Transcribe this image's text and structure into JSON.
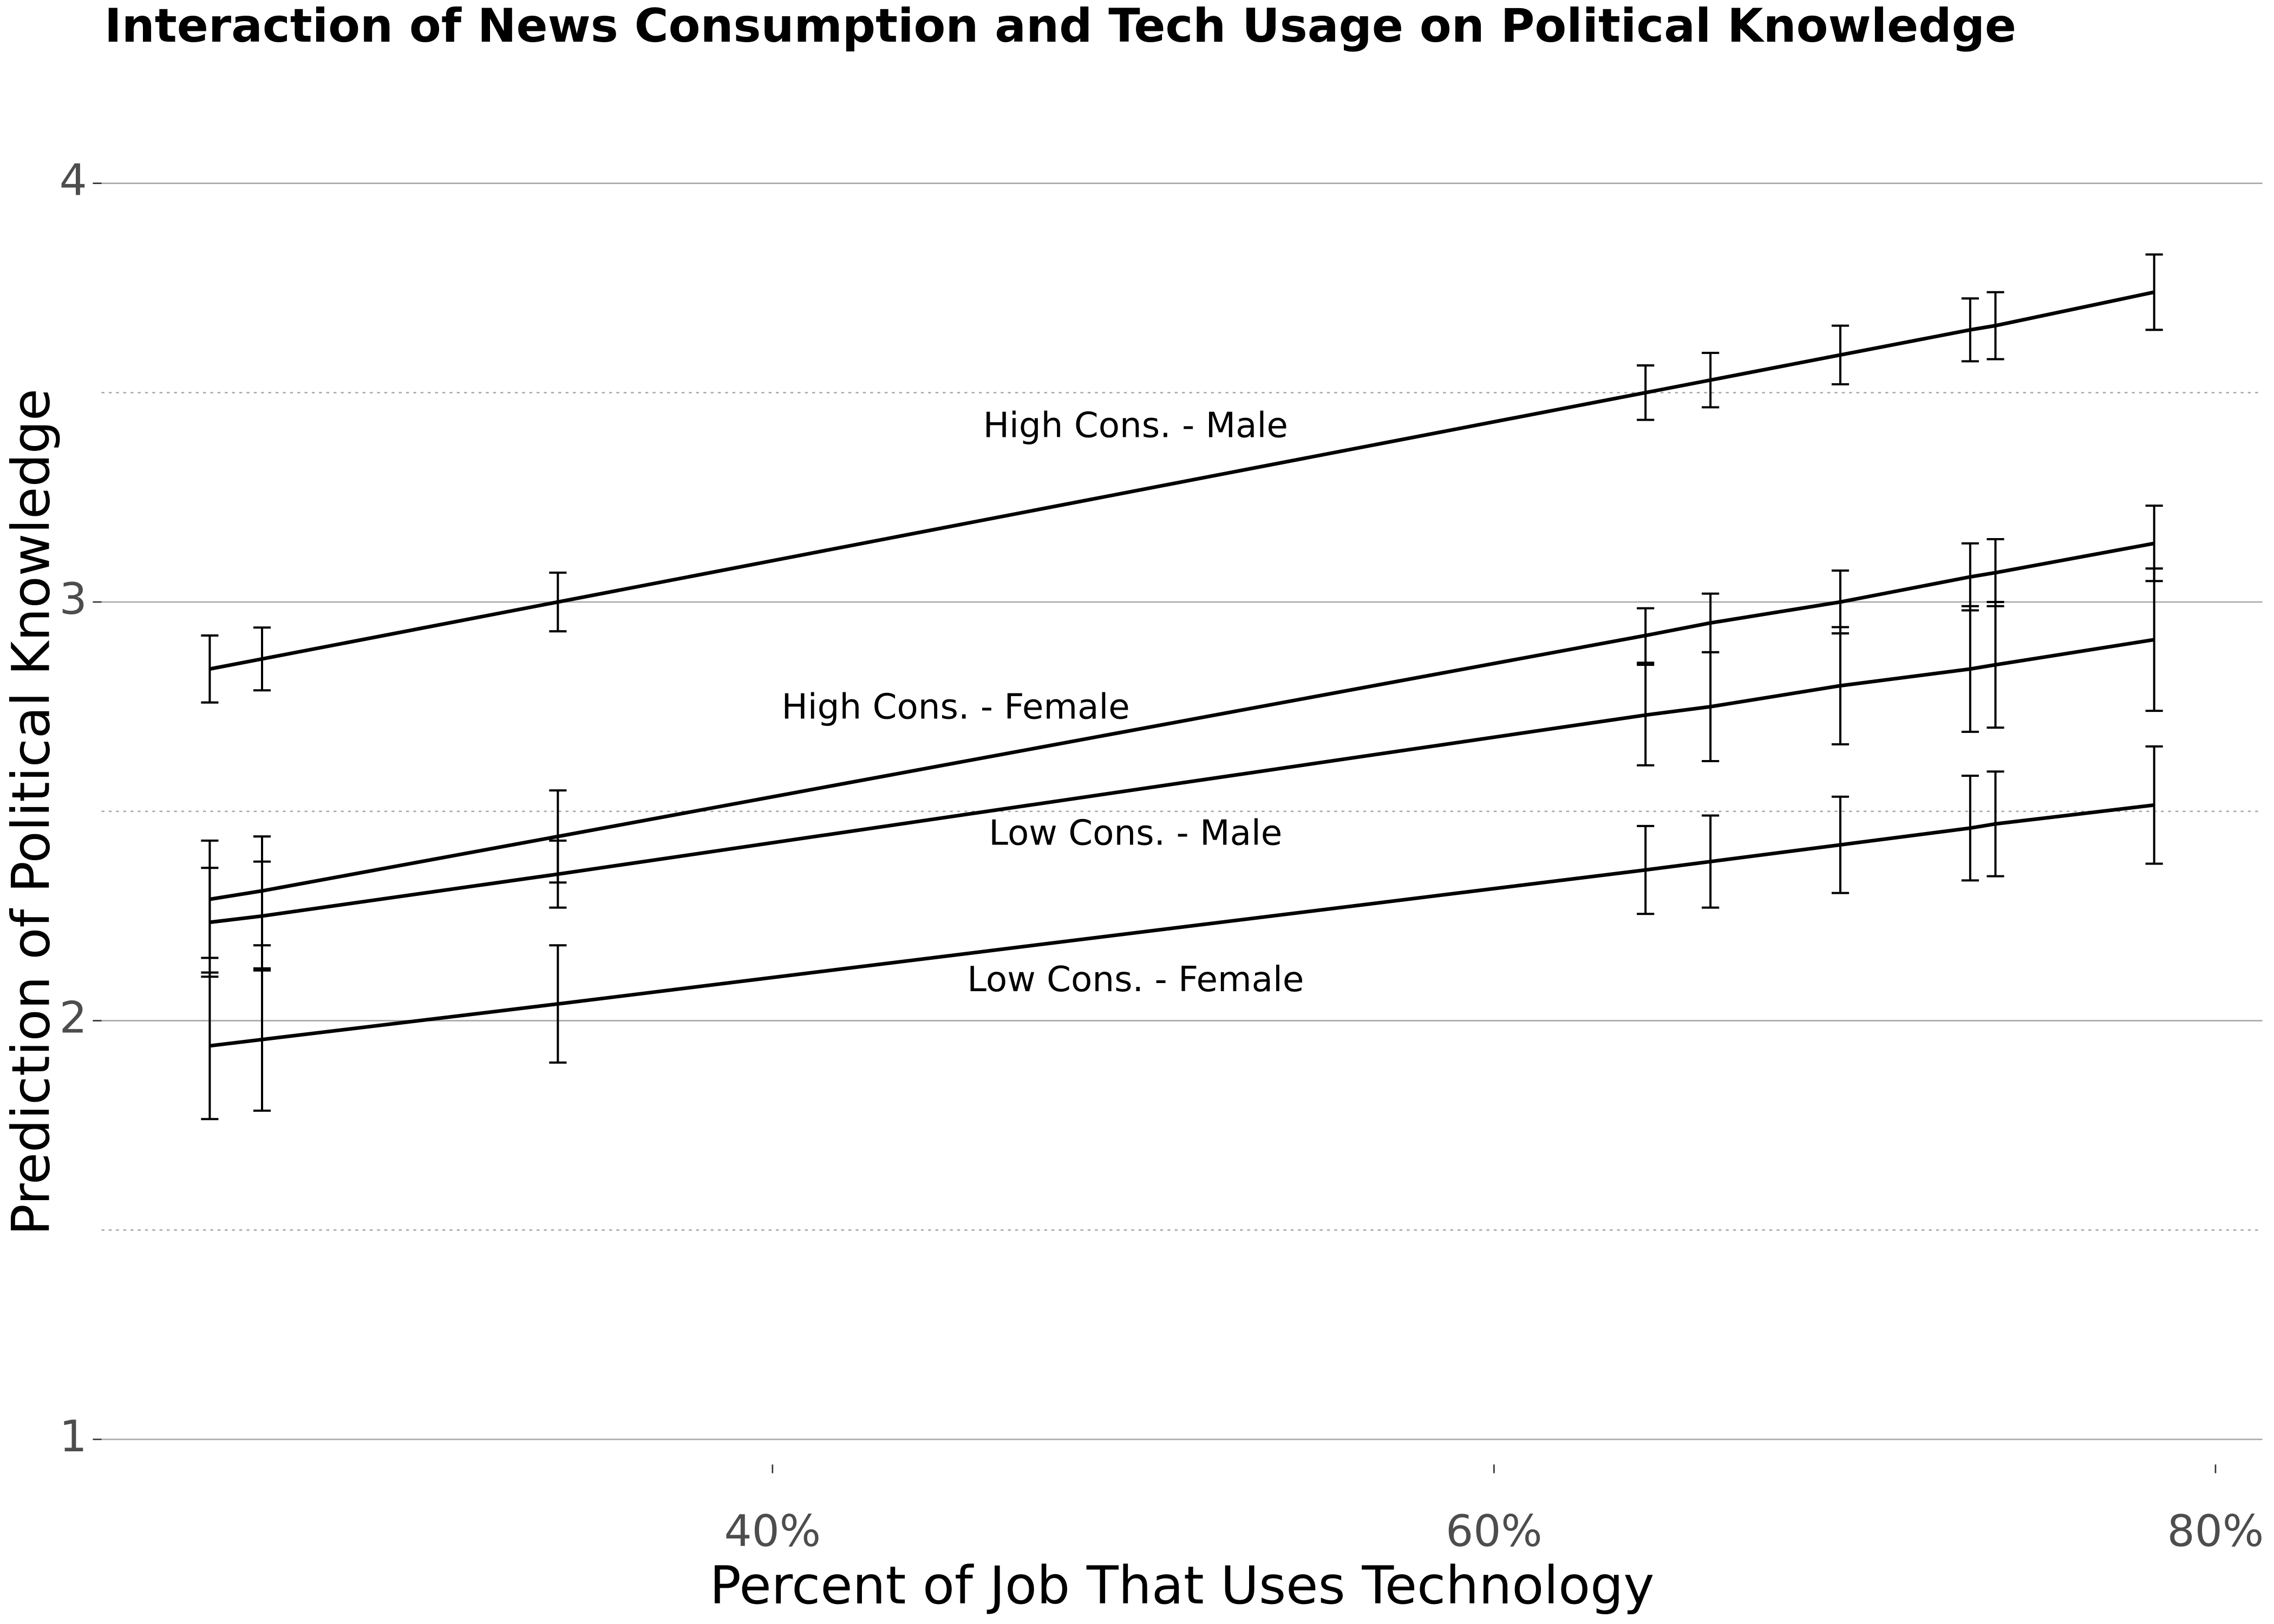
{
  "chart_data": {
    "type": "line",
    "title": "Interaction of News Consumption and Tech Usage on Political Knowledge",
    "x_label": "Percent of Job That Uses Technology",
    "y_label": "Prediction of Political Knowledge",
    "x": [
      24.4,
      25.85,
      34.05,
      64.2,
      66.0,
      69.6,
      73.2,
      73.9,
      78.3
    ],
    "xlim": [
      21.4,
      81.3
    ],
    "ylim": [
      0.94,
      4.23
    ],
    "xticks": [
      {
        "value": 40,
        "label": "40%"
      },
      {
        "value": 60,
        "label": "60%"
      },
      {
        "value": 80,
        "label": "80%"
      }
    ],
    "yticks": [
      1,
      2,
      3,
      4
    ],
    "yminor": [
      1.5,
      2.5,
      3.5
    ],
    "grid": true,
    "color": "#000000",
    "series": [
      {
        "name": "High Cons. - Male",
        "color": "#000000",
        "values": [
          2.84,
          2.864,
          3.0,
          3.5,
          3.53,
          3.59,
          3.65,
          3.66,
          3.74
        ],
        "errors": [
          0.08,
          0.075,
          0.07,
          0.065,
          0.065,
          0.07,
          0.075,
          0.08,
          0.09
        ]
      },
      {
        "name": "High Cons. - Female",
        "color": "#000000",
        "values": [
          2.29,
          2.31,
          2.44,
          2.92,
          2.95,
          3.0,
          3.06,
          3.07,
          3.14
        ],
        "errors": [
          0.14,
          0.13,
          0.11,
          0.065,
          0.07,
          0.075,
          0.08,
          0.08,
          0.09
        ]
      },
      {
        "name": "Low Cons. - Male",
        "color": "#000000",
        "values": [
          2.235,
          2.25,
          2.35,
          2.73,
          2.75,
          2.8,
          2.84,
          2.85,
          2.91
        ],
        "errors": [
          0.13,
          0.13,
          0.08,
          0.12,
          0.13,
          0.14,
          0.15,
          0.15,
          0.17
        ]
      },
      {
        "name": "Low Cons. - Female",
        "color": "#000000",
        "values": [
          1.94,
          1.955,
          2.04,
          2.36,
          2.38,
          2.42,
          2.46,
          2.47,
          2.515
        ],
        "errors": [
          0.175,
          0.17,
          0.14,
          0.105,
          0.11,
          0.115,
          0.125,
          0.125,
          0.14
        ]
      }
    ]
  }
}
